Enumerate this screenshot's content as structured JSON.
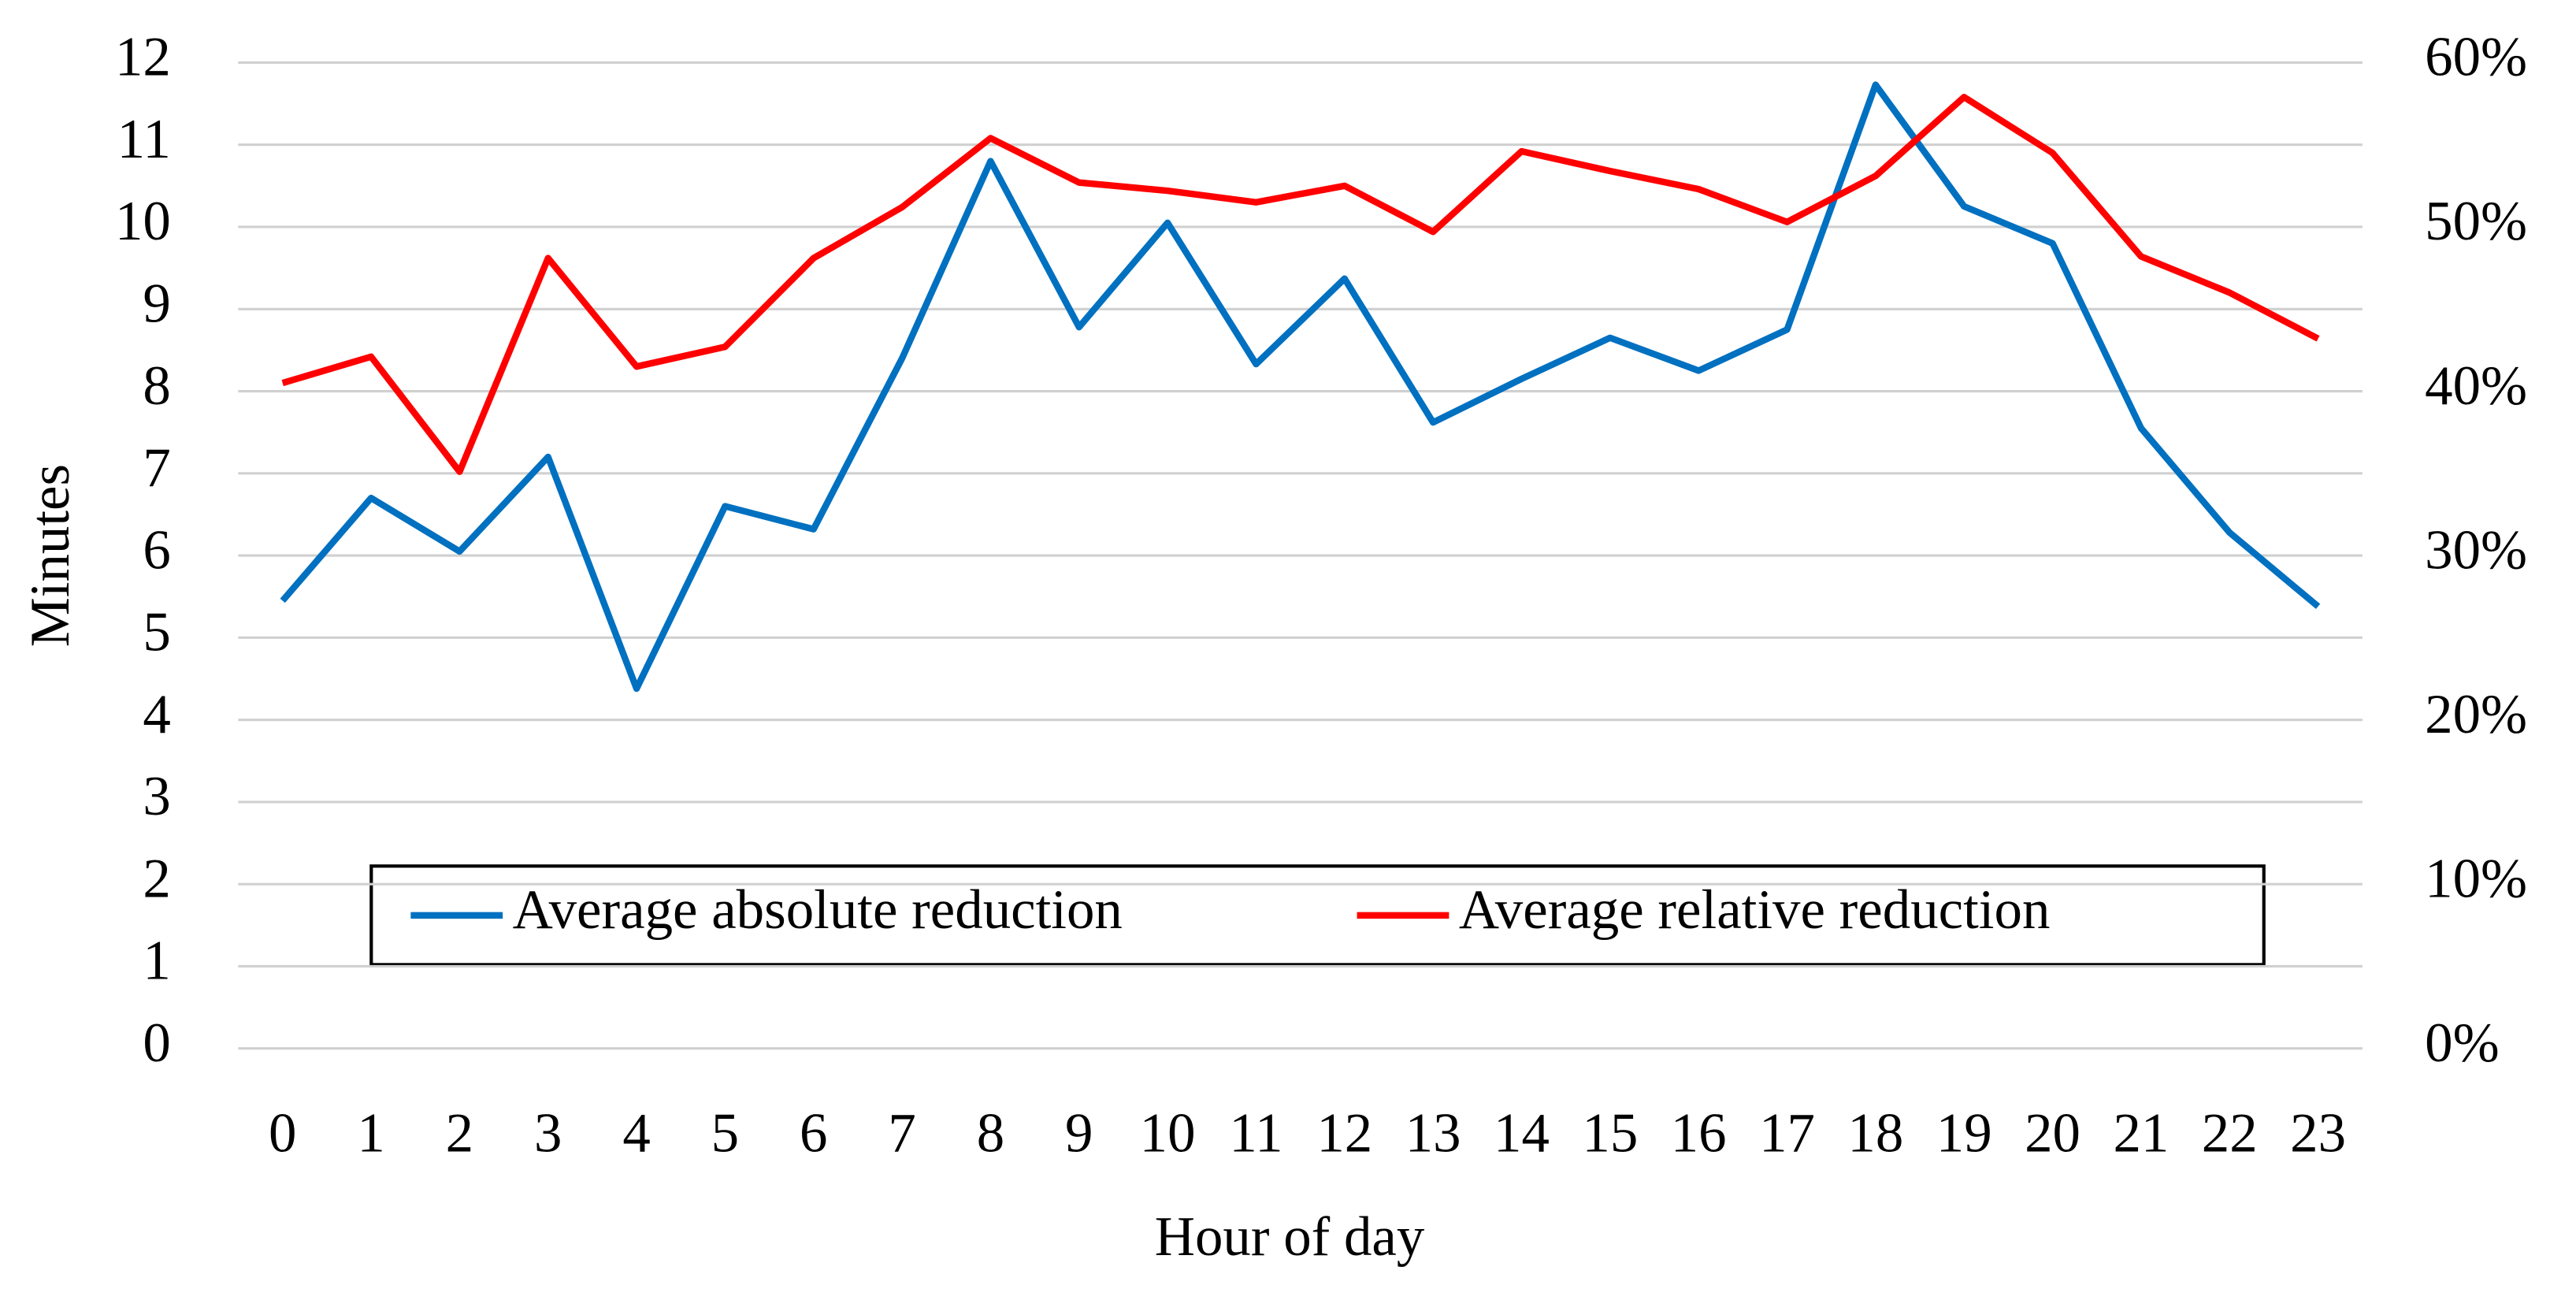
{
  "chart_data": {
    "type": "line",
    "x_label": "Hour of day",
    "y_label": "Minutes",
    "categories": [
      "0",
      "1",
      "2",
      "3",
      "4",
      "5",
      "6",
      "7",
      "8",
      "9",
      "10",
      "11",
      "12",
      "13",
      "14",
      "15",
      "16",
      "17",
      "18",
      "19",
      "20",
      "21",
      "22",
      "23"
    ],
    "series": [
      {
        "name": "Average absolute reduction",
        "color": "#0070c0",
        "values": [
          5.45,
          6.7,
          6.05,
          7.2,
          4.38,
          6.6,
          6.32,
          8.4,
          10.8,
          8.78,
          10.05,
          8.33,
          9.37,
          7.62,
          8.15,
          8.65,
          8.25,
          8.75,
          11.73,
          10.25,
          9.8,
          7.55,
          6.28,
          5.38
        ]
      },
      {
        "name": "Average relative reduction",
        "color": "#ff0000",
        "axis": "y2",
        "values": [
          40.5,
          42.1,
          35.1,
          48.1,
          41.5,
          42.7,
          48.1,
          51.2,
          55.4,
          52.7,
          52.2,
          51.5,
          52.5,
          49.7,
          54.6,
          53.4,
          52.3,
          50.3,
          53.1,
          57.9,
          54.5,
          48.2,
          46.0,
          43.2
        ]
      }
    ],
    "ylim": [
      0,
      12
    ],
    "yticks": [
      0,
      1,
      2,
      3,
      4,
      5,
      6,
      7,
      8,
      9,
      10,
      11,
      12
    ],
    "y2lim": [
      0,
      60
    ],
    "y2ticks": [
      {
        "value": 0,
        "label": "0%"
      },
      {
        "value": 10,
        "label": "10%"
      },
      {
        "value": 20,
        "label": "20%"
      },
      {
        "value": 30,
        "label": "30%"
      },
      {
        "value": 40,
        "label": "40%"
      },
      {
        "value": 50,
        "label": "50%"
      },
      {
        "value": 60,
        "label": "60%"
      }
    ],
    "grid": true,
    "legend": "bottom"
  }
}
